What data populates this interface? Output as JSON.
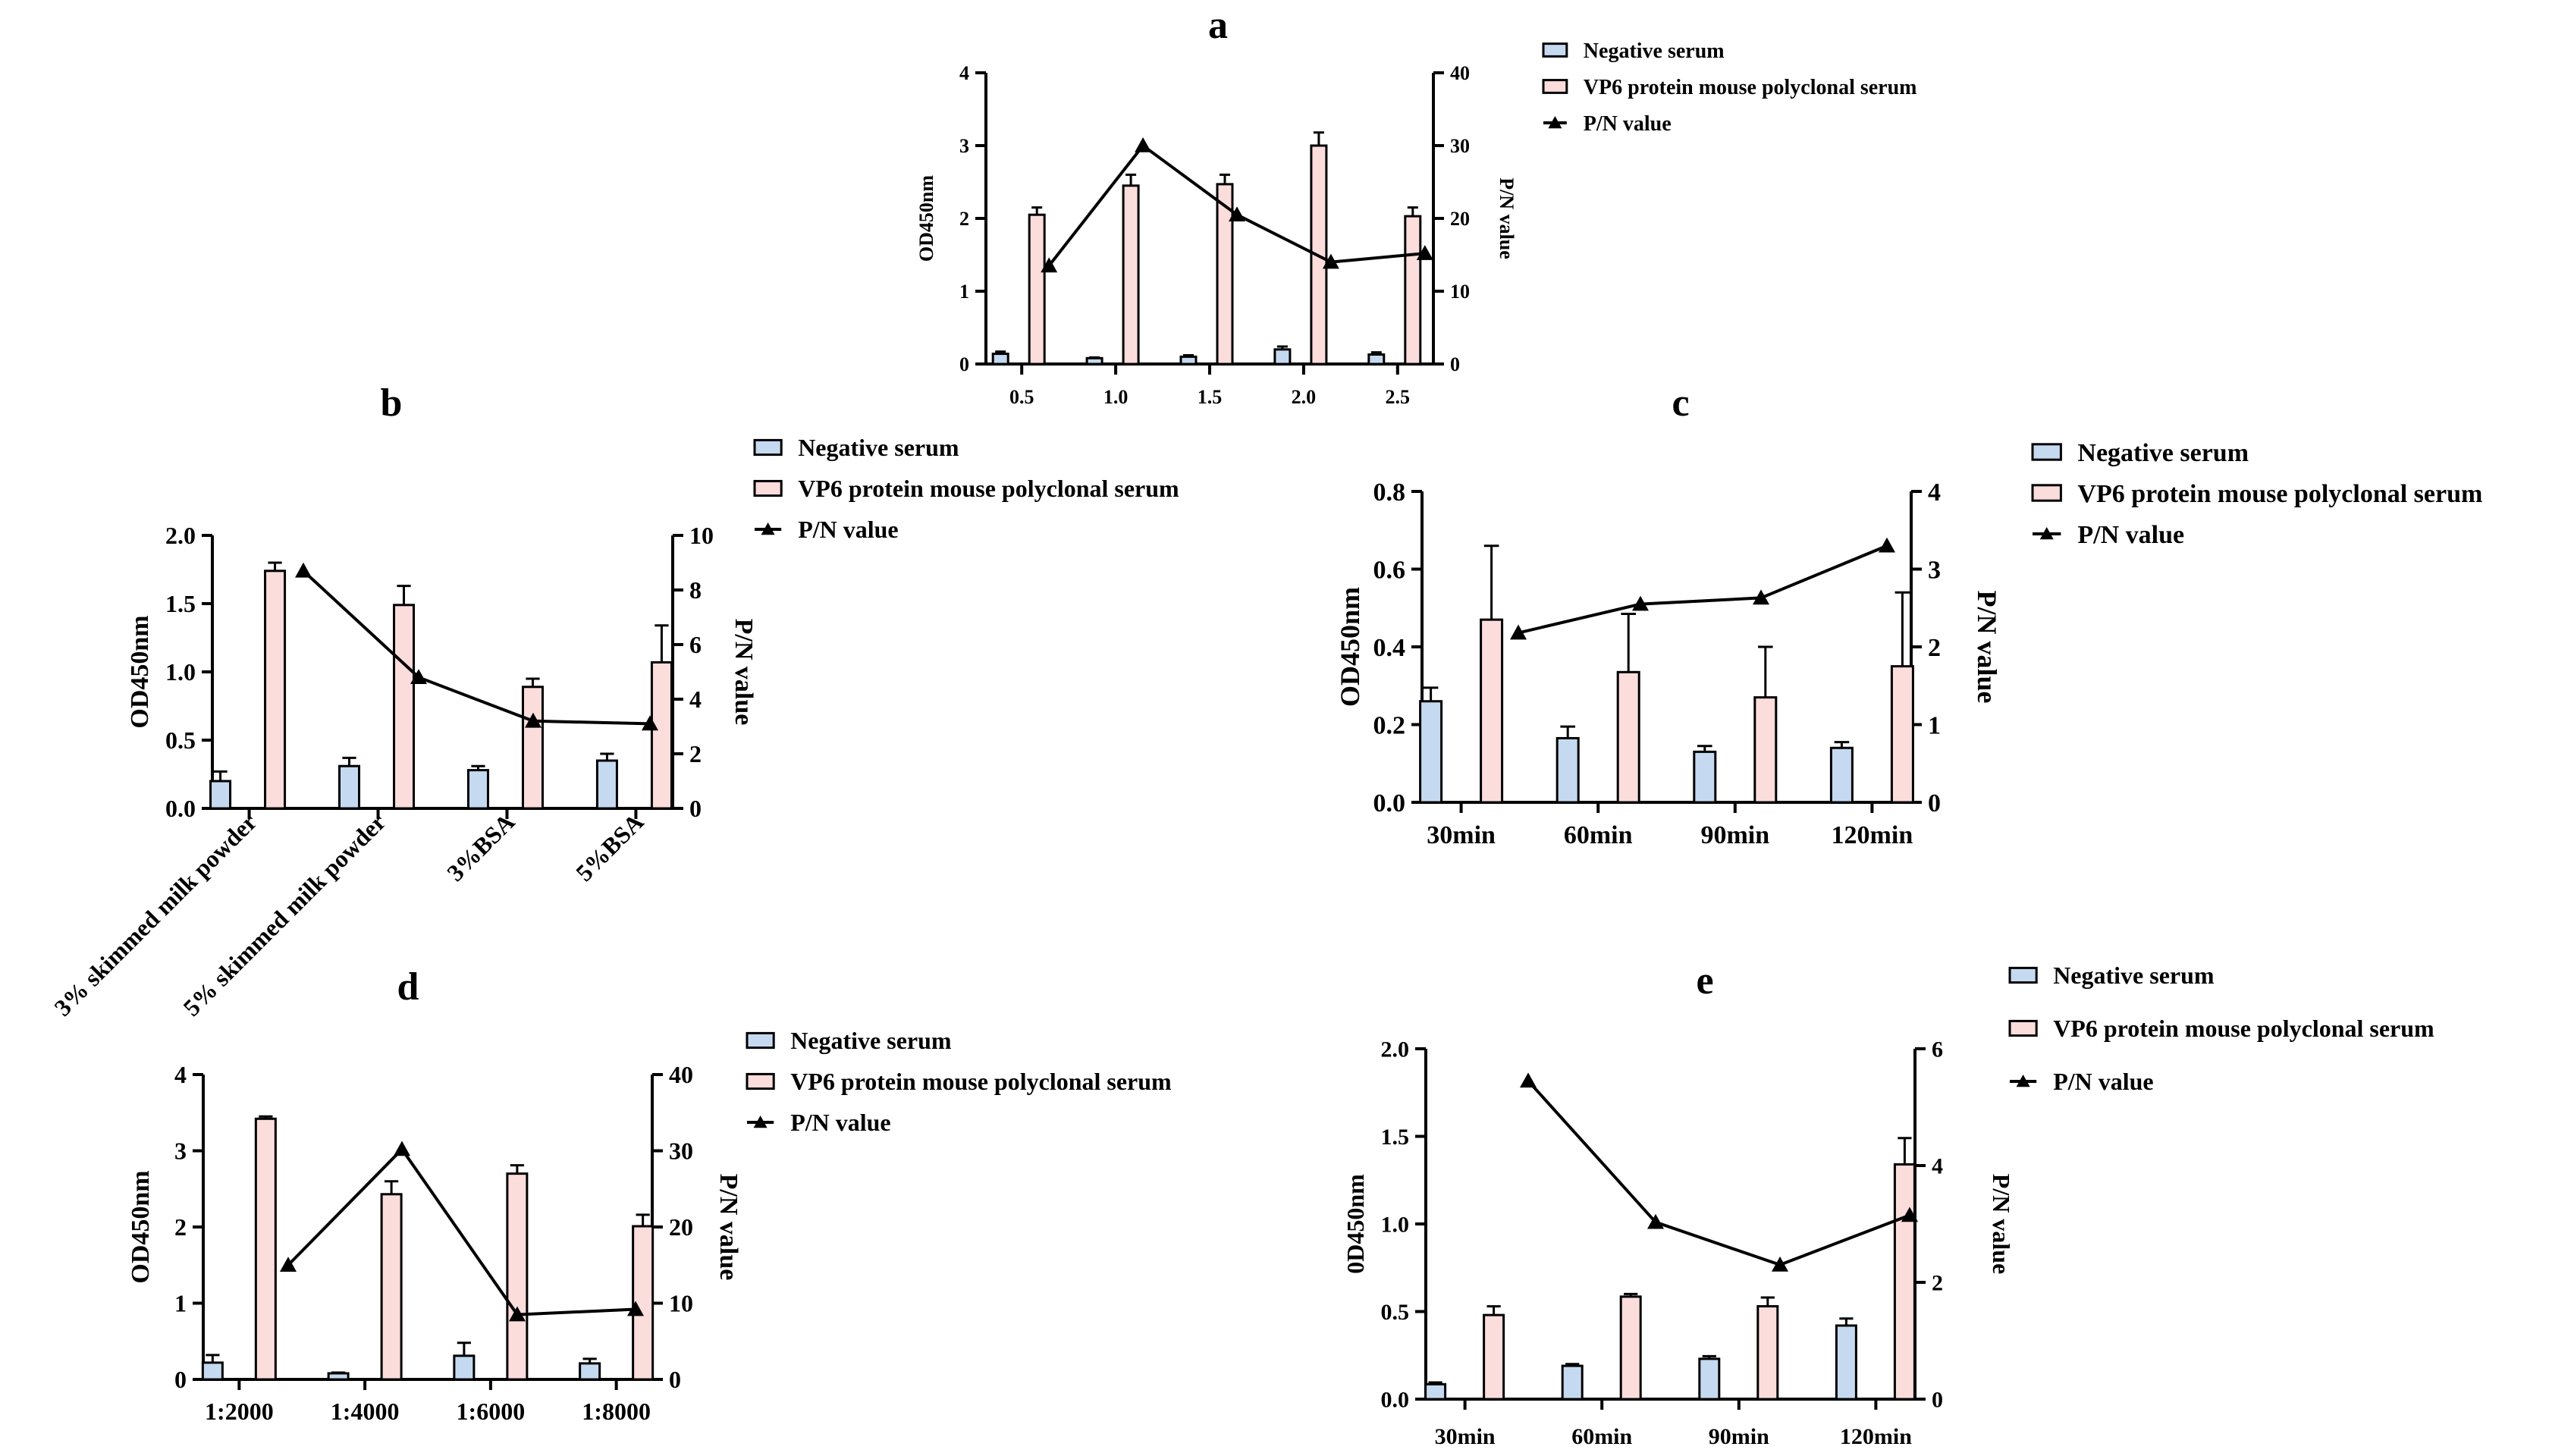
{
  "colors": {
    "negative": "#c5daf0",
    "vp6": "#fbdddc",
    "line": "#000000"
  },
  "chart_data": [
    {
      "id": "a",
      "type": "bar",
      "title": "a",
      "ylabel": "OD450nm",
      "y2label": "P/N value",
      "ylim": [
        0,
        4
      ],
      "y2lim": [
        0,
        40
      ],
      "yticks": [
        "0",
        "1",
        "2",
        "3",
        "4"
      ],
      "y2ticks": [
        "0",
        "10",
        "20",
        "30",
        "40"
      ],
      "categories": [
        "0.5",
        "1.0",
        "1.5",
        "2.0",
        "2.5"
      ],
      "legend": [
        "Negative serum",
        "VP6 protein mouse polyclonal serum",
        "P/N value"
      ],
      "series": [
        {
          "name": "Negative serum",
          "values": [
            0.14,
            0.08,
            0.1,
            0.2,
            0.13
          ],
          "errors": [
            0.03,
            0.01,
            0.02,
            0.04,
            0.03
          ]
        },
        {
          "name": "VP6 protein mouse polyclonal serum",
          "values": [
            2.05,
            2.45,
            2.47,
            3.0,
            2.03
          ],
          "errors": [
            0.1,
            0.15,
            0.13,
            0.18,
            0.12
          ]
        },
        {
          "name": "P/N value",
          "values": [
            13.5,
            30.0,
            20.5,
            14.0,
            15.2
          ]
        }
      ]
    },
    {
      "id": "b",
      "type": "bar",
      "title": "b",
      "ylabel": "OD450nm",
      "y2label": "P/N value",
      "ylim": [
        0,
        2.0
      ],
      "y2lim": [
        0,
        10
      ],
      "yticks": [
        "0.0",
        "0.5",
        "1.0",
        "1.5",
        "2.0"
      ],
      "y2ticks": [
        "0",
        "2",
        "4",
        "6",
        "8",
        "10"
      ],
      "categories": [
        "3% skimmed milk powder",
        "5% skimmed milk powder",
        "3%BSA",
        "5%BSA"
      ],
      "legend": [
        "Negative serum",
        "VP6 protein mouse polyclonal serum",
        "P/N value"
      ],
      "series": [
        {
          "name": "Negative serum",
          "values": [
            0.2,
            0.31,
            0.28,
            0.35
          ],
          "errors": [
            0.07,
            0.06,
            0.03,
            0.05
          ]
        },
        {
          "name": "VP6 protein mouse polyclonal serum",
          "values": [
            1.74,
            1.49,
            0.89,
            1.07
          ],
          "errors": [
            0.06,
            0.14,
            0.06,
            0.27
          ]
        },
        {
          "name": "P/N value",
          "values": [
            8.7,
            4.8,
            3.2,
            3.1
          ]
        }
      ]
    },
    {
      "id": "c",
      "type": "bar",
      "title": "c",
      "ylabel": "OD450nm",
      "y2label": "P/N value",
      "ylim": [
        0,
        0.8
      ],
      "y2lim": [
        0,
        4
      ],
      "yticks": [
        "0.0",
        "0.2",
        "0.4",
        "0.6",
        "0.8"
      ],
      "y2ticks": [
        "0",
        "1",
        "2",
        "3",
        "4"
      ],
      "categories": [
        "30min",
        "60min",
        "90min",
        "120min"
      ],
      "legend": [
        "Negative serum",
        "VP6 protein mouse polyclonal serum",
        "P/N value"
      ],
      "series": [
        {
          "name": "Negative serum",
          "values": [
            0.26,
            0.165,
            0.13,
            0.14
          ],
          "errors": [
            0.035,
            0.03,
            0.015,
            0.015
          ]
        },
        {
          "name": "VP6 protein mouse polyclonal serum",
          "values": [
            0.47,
            0.335,
            0.27,
            0.35
          ],
          "errors": [
            0.19,
            0.15,
            0.13,
            0.19
          ]
        },
        {
          "name": "P/N value",
          "values": [
            2.18,
            2.55,
            2.63,
            3.3
          ]
        }
      ]
    },
    {
      "id": "d",
      "type": "bar",
      "title": "d",
      "ylabel": "OD450nm",
      "y2label": "P/N value",
      "ylim": [
        0,
        4
      ],
      "y2lim": [
        0,
        40
      ],
      "yticks": [
        "0",
        "1",
        "2",
        "3",
        "4"
      ],
      "y2ticks": [
        "0",
        "10",
        "20",
        "30",
        "40"
      ],
      "categories": [
        "1:2000",
        "1:4000",
        "1:6000",
        "1:8000"
      ],
      "legend": [
        "Negative serum",
        "VP6 protein mouse polyclonal serum",
        "P/N value"
      ],
      "series": [
        {
          "name": "Negative serum",
          "values": [
            0.22,
            0.08,
            0.31,
            0.21
          ],
          "errors": [
            0.1,
            0.01,
            0.17,
            0.06
          ]
        },
        {
          "name": "VP6 protein mouse polyclonal serum",
          "values": [
            3.42,
            2.43,
            2.7,
            2.01
          ],
          "errors": [
            0.03,
            0.17,
            0.11,
            0.15
          ]
        },
        {
          "name": "P/N value",
          "values": [
            15.0,
            30.2,
            8.5,
            9.2
          ]
        }
      ]
    },
    {
      "id": "e",
      "type": "bar",
      "title": "e",
      "ylabel": "0D450nm",
      "y2label": "P/N value",
      "ylim": [
        0,
        2.0
      ],
      "y2lim": [
        0,
        6
      ],
      "yticks": [
        "0.0",
        "0.5",
        "1.0",
        "1.5",
        "2.0"
      ],
      "y2ticks": [
        "0",
        "2",
        "4",
        "6"
      ],
      "categories": [
        "30min",
        "60min",
        "90min",
        "120min"
      ],
      "legend": [
        "Negative serum",
        "VP6 protein mouse polyclonal serum",
        "P/N value"
      ],
      "series": [
        {
          "name": "Negative serum",
          "values": [
            0.085,
            0.19,
            0.23,
            0.42
          ],
          "errors": [
            0.01,
            0.01,
            0.015,
            0.04
          ]
        },
        {
          "name": "VP6 protein mouse polyclonal serum",
          "values": [
            0.48,
            0.585,
            0.53,
            1.34
          ],
          "errors": [
            0.05,
            0.015,
            0.05,
            0.15
          ]
        },
        {
          "name": "P/N value",
          "values": [
            5.45,
            3.03,
            2.3,
            3.15
          ]
        }
      ]
    }
  ]
}
